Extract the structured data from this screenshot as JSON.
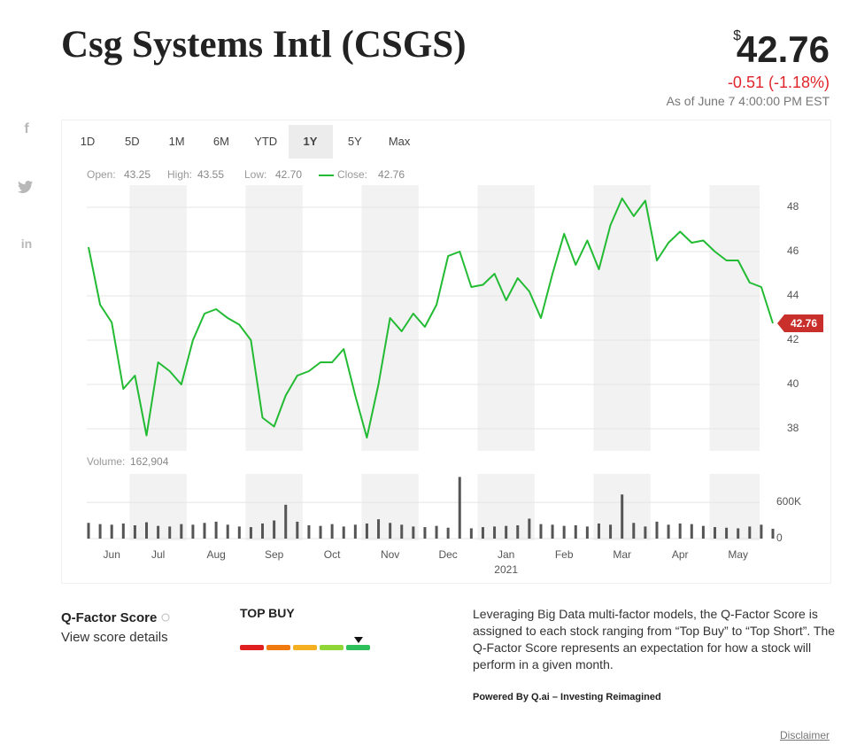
{
  "header": {
    "title": "Csg Systems Intl (CSGS)",
    "currency": "$",
    "change": "-0.51 (-1.18%)",
    "as_of": "As of June 7 4:00:00 PM EST"
  },
  "social": [
    "f",
    "in"
  ],
  "ranges": {
    "options": [
      "1D",
      "5D",
      "1M",
      "6M",
      "YTD",
      "1Y",
      "5Y",
      "Max"
    ],
    "active": "1Y"
  },
  "quote": {
    "ohlc": [
      {
        "label": "Open:",
        "value": "43.25"
      },
      {
        "label": "High:",
        "value": "43.55"
      },
      {
        "label": "Low:",
        "value": "42.70"
      }
    ],
    "close_label": "Close:"
  },
  "chart_data": [
    {
      "type": "line",
      "categories": [
        null,
        null,
        "Jun",
        null,
        null,
        null,
        "Jul",
        null,
        null,
        null,
        null,
        "Aug",
        null,
        null,
        null,
        null,
        "Sep",
        null,
        null,
        null,
        null,
        "Oct",
        null,
        null,
        null,
        null,
        "Nov",
        null,
        null,
        null,
        null,
        "Dec",
        null,
        null,
        null,
        null,
        "Jan\n2021",
        null,
        null,
        null,
        null,
        "Feb",
        null,
        null,
        null,
        null,
        "Mar",
        null,
        null,
        null,
        null,
        "Apr",
        null,
        null,
        null,
        null,
        "May",
        null,
        null,
        null
      ],
      "series": [
        {
          "name": "Close",
          "color": "#22bb33",
          "values": [
            46.2,
            43.6,
            42.8,
            39.8,
            40.4,
            37.7,
            41.0,
            40.6,
            40.0,
            42.0,
            43.2,
            43.4,
            43.0,
            42.7,
            42.0,
            38.5,
            38.1,
            39.5,
            40.4,
            40.6,
            41.0,
            41.0,
            41.6,
            39.5,
            37.6,
            40.0,
            43.0,
            42.4,
            43.2,
            42.6,
            43.6,
            45.8,
            46.0,
            44.4,
            44.5,
            45.0,
            43.8,
            44.8,
            44.2,
            43.0,
            45.0,
            46.8,
            45.4,
            46.5,
            45.2,
            47.2,
            48.4,
            47.6,
            48.3,
            45.6,
            46.4,
            46.9,
            46.4,
            46.5,
            46.0,
            45.6,
            45.6,
            44.6,
            44.4,
            42.76
          ]
        }
      ],
      "ylim": [
        37,
        49
      ],
      "yticks": [
        38,
        40,
        42,
        44,
        46,
        48
      ],
      "grid": true,
      "tag_color": "#c9302c",
      "band_color": "#f2f2f2"
    },
    {
      "type": "bar",
      "legend_label": "Volume:",
      "latest": {
        "value": 162904,
        "label": "162,904"
      },
      "color": "#555555",
      "values": [
        260000,
        240000,
        230000,
        250000,
        220000,
        270000,
        210000,
        200000,
        240000,
        230000,
        260000,
        280000,
        230000,
        200000,
        190000,
        250000,
        300000,
        560000,
        280000,
        220000,
        210000,
        240000,
        200000,
        230000,
        250000,
        320000,
        260000,
        230000,
        200000,
        190000,
        210000,
        180000,
        1020000,
        170000,
        190000,
        200000,
        210000,
        220000,
        330000,
        240000,
        230000,
        210000,
        220000,
        200000,
        250000,
        230000,
        730000,
        260000,
        200000,
        280000,
        230000,
        250000,
        240000,
        210000,
        190000,
        180000,
        170000,
        200000,
        230000,
        162904
      ],
      "ylim": [
        0,
        1070000
      ],
      "yticks": [
        0,
        {
          "value": 600000,
          "label": "600K"
        }
      ],
      "grid": true
    }
  ],
  "qfactor": {
    "name": "Q-Factor Score",
    "details": "View score details",
    "rating": "TOP BUY",
    "description": "Leveraging Big Data multi-factor models, the Q-Factor Score is assigned to each stock ranging from “Top Buy” to “Top Short”. The Q-Factor Score represents an expectation for how a stock will perform in a given month.",
    "powered_by": "Powered By Q.ai – Investing Reimagined"
  },
  "disclaimer": "Disclaimer"
}
